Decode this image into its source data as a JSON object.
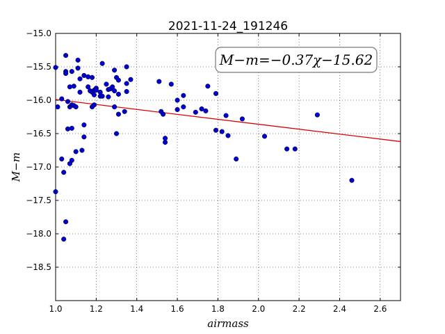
{
  "chart_data": {
    "type": "scatter",
    "title": "2021-11-24_191246",
    "xlabel": "airmass",
    "ylabel": "M−m",
    "xlim": [
      1.0,
      2.7
    ],
    "ylim": [
      -19.0,
      -15.0
    ],
    "y_inverted": true,
    "xticks": [
      "1.0",
      "1.2",
      "1.4",
      "1.6",
      "1.8",
      "2.0",
      "2.2",
      "2.4",
      "2.6"
    ],
    "yticks": [
      "−15.0",
      "−15.5",
      "−16.0",
      "−16.5",
      "−17.0",
      "−17.5",
      "−18.0",
      "−18.5"
    ],
    "grid": true,
    "annotation": "M−m=−0.37χ−15.62",
    "marker_color": "#0000cc",
    "fit_color": "#dd0000",
    "fit_line": {
      "slope": -0.37,
      "intercept": -15.62
    },
    "points": [
      [
        1.0,
        -15.51
      ],
      [
        1.0,
        -17.37
      ],
      [
        1.01,
        -16.1
      ],
      [
        1.03,
        -16.88
      ],
      [
        1.03,
        -15.98
      ],
      [
        1.04,
        -18.08
      ],
      [
        1.04,
        -17.08
      ],
      [
        1.05,
        -17.82
      ],
      [
        1.05,
        -15.57
      ],
      [
        1.05,
        -15.6
      ],
      [
        1.05,
        -15.33
      ],
      [
        1.06,
        -16.43
      ],
      [
        1.06,
        -16.02
      ],
      [
        1.07,
        -16.95
      ],
      [
        1.07,
        -16.1
      ],
      [
        1.07,
        -15.8
      ],
      [
        1.08,
        -16.07
      ],
      [
        1.08,
        -16.9
      ],
      [
        1.08,
        -16.42
      ],
      [
        1.08,
        -15.57
      ],
      [
        1.09,
        -16.08
      ],
      [
        1.09,
        -15.79
      ],
      [
        1.1,
        -16.77
      ],
      [
        1.1,
        -16.1
      ],
      [
        1.11,
        -15.52
      ],
      [
        1.11,
        -15.4
      ],
      [
        1.12,
        -15.68
      ],
      [
        1.12,
        -15.88
      ],
      [
        1.13,
        -16.75
      ],
      [
        1.14,
        -16.37
      ],
      [
        1.14,
        -16.55
      ],
      [
        1.14,
        -15.63
      ],
      [
        1.16,
        -15.8
      ],
      [
        1.16,
        -15.65
      ],
      [
        1.17,
        -15.86
      ],
      [
        1.18,
        -16.1
      ],
      [
        1.18,
        -15.66
      ],
      [
        1.18,
        -15.88
      ],
      [
        1.19,
        -15.92
      ],
      [
        1.19,
        -16.07
      ],
      [
        1.19,
        -15.85
      ],
      [
        1.2,
        -15.82
      ],
      [
        1.2,
        -15.85
      ],
      [
        1.22,
        -15.88
      ],
      [
        1.22,
        -15.94
      ],
      [
        1.23,
        -15.94
      ],
      [
        1.23,
        -15.45
      ],
      [
        1.25,
        -15.76
      ],
      [
        1.26,
        -15.84
      ],
      [
        1.26,
        -15.95
      ],
      [
        1.27,
        -15.83
      ],
      [
        1.28,
        -15.8
      ],
      [
        1.29,
        -15.86
      ],
      [
        1.29,
        -15.55
      ],
      [
        1.29,
        -16.1
      ],
      [
        1.3,
        -15.66
      ],
      [
        1.3,
        -16.5
      ],
      [
        1.31,
        -15.7
      ],
      [
        1.31,
        -15.91
      ],
      [
        1.31,
        -16.21
      ],
      [
        1.34,
        -16.17
      ],
      [
        1.35,
        -15.75
      ],
      [
        1.35,
        -15.5
      ],
      [
        1.35,
        -15.87
      ],
      [
        1.37,
        -15.69
      ],
      [
        1.51,
        -15.72
      ],
      [
        1.52,
        -16.17
      ],
      [
        1.53,
        -16.21
      ],
      [
        1.54,
        -16.63
      ],
      [
        1.54,
        -16.57
      ],
      [
        1.57,
        -15.76
      ],
      [
        1.6,
        -16.14
      ],
      [
        1.6,
        -16.0
      ],
      [
        1.63,
        -16.1
      ],
      [
        1.63,
        -15.93
      ],
      [
        1.69,
        -16.18
      ],
      [
        1.72,
        -16.13
      ],
      [
        1.74,
        -16.16
      ],
      [
        1.75,
        -15.79
      ],
      [
        1.79,
        -16.45
      ],
      [
        1.79,
        -15.9
      ],
      [
        1.82,
        -16.47
      ],
      [
        1.84,
        -16.23
      ],
      [
        1.85,
        -16.53
      ],
      [
        1.89,
        -16.88
      ],
      [
        1.92,
        -16.28
      ],
      [
        2.03,
        -16.54
      ],
      [
        2.14,
        -16.73
      ],
      [
        2.18,
        -16.73
      ],
      [
        2.29,
        -16.22
      ],
      [
        2.46,
        -17.2
      ]
    ]
  }
}
